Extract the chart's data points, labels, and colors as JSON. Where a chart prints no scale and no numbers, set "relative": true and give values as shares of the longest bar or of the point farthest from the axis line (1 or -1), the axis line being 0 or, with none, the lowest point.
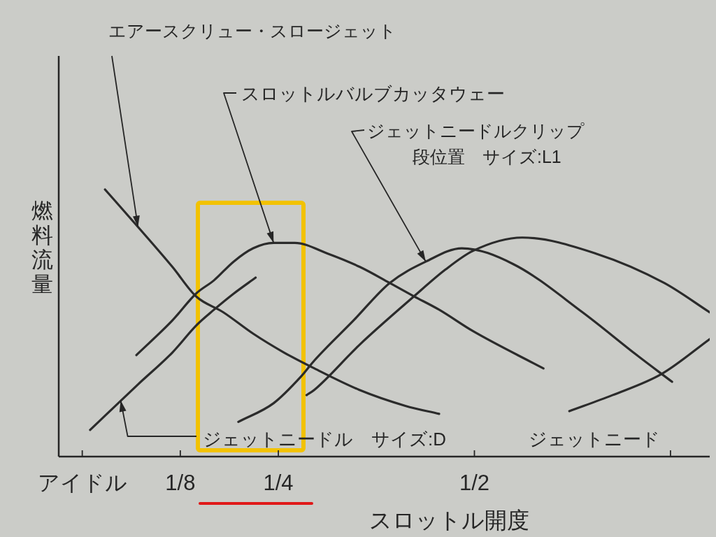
{
  "chart_data": {
    "type": "line",
    "relative": true,
    "xlabel": "スロットル開度",
    "ylabel": "燃料流量",
    "xlim": [
      -0.03,
      0.8
    ],
    "xticks": [
      {
        "value": 0,
        "label": "アイドル"
      },
      {
        "value": 0.125,
        "label": "1/8"
      },
      {
        "value": 0.25,
        "label": "1/4"
      },
      {
        "value": 0.5,
        "label": "1/2"
      },
      {
        "value": 0.75,
        "label": null
      }
    ],
    "series": [
      {
        "color": "#2b2b2b",
        "x": [
          0.029,
          0.071,
          0.115,
          0.145,
          0.18,
          0.218,
          0.257,
          0.296,
          0.353,
          0.412,
          0.455
        ],
        "values": [
          1,
          0.86,
          0.71,
          0.6,
          0.54,
          0.46,
          0.39,
          0.33,
          0.25,
          0.19,
          0.16
        ]
      },
      {
        "color": "#2b2b2b",
        "x": [
          0.01,
          0.071,
          0.115,
          0.145,
          0.168,
          0.193,
          0.221
        ],
        "values": [
          0.1,
          0.27,
          0.39,
          0.49,
          0.55,
          0.61,
          0.67
        ]
      },
      {
        "color": "#2b2b2b",
        "x": [
          0.069,
          0.115,
          0.145,
          0.168,
          0.193,
          0.218,
          0.244,
          0.271,
          0.313,
          0.354,
          0.392,
          0.423,
          0.455,
          0.498,
          0.588
        ],
        "values": [
          0.38,
          0.51,
          0.61,
          0.66,
          0.73,
          0.78,
          0.8,
          0.8,
          0.76,
          0.71,
          0.65,
          0.6,
          0.55,
          0.47,
          0.33
        ]
      },
      {
        "color": "#2b2b2b",
        "x": [
          0.199,
          0.244,
          0.279,
          0.296,
          0.346,
          0.392,
          0.438,
          0.484,
          0.55,
          0.638,
          0.707,
          0.752
        ],
        "values": [
          0.13,
          0.2,
          0.3,
          0.36,
          0.51,
          0.65,
          0.73,
          0.78,
          0.72,
          0.54,
          0.38,
          0.28
        ]
      },
      {
        "color": "#2b2b2b",
        "x": [
          0.286,
          0.296,
          0.354,
          0.423,
          0.463,
          0.498,
          0.561,
          0.655,
          0.742,
          0.8
        ],
        "values": [
          0.23,
          0.25,
          0.42,
          0.6,
          0.7,
          0.77,
          0.82,
          0.76,
          0.65,
          0.54
        ]
      },
      {
        "color": "#2b2b2b",
        "x": [
          0.621,
          0.676,
          0.739,
          0.8
        ],
        "values": [
          0.17,
          0.23,
          0.31,
          0.44
        ]
      }
    ],
    "annotations": [
      {
        "text": "エアースクリュー・スロージェット",
        "x": 0.071,
        "y": 0.86
      },
      {
        "text": "スロットルバルブカッタウェー",
        "x": 0.244,
        "y": 0.8
      },
      {
        "text": "ジェットニードルクリップ",
        "x": 0.438,
        "y": 0.73
      },
      "段位置　サイズ:L1",
      {
        "text": "ジェットニードル　サイズ:D",
        "x": 0.049,
        "y": 0.21
      },
      "ジェットニード"
    ],
    "marker": "none",
    "line_style": "solid"
  }
}
